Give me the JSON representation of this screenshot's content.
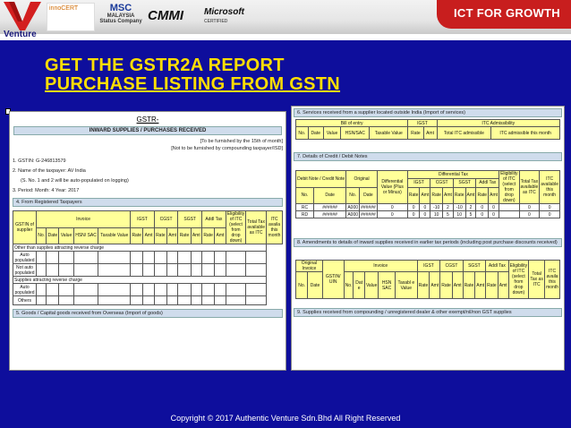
{
  "header": {
    "tagline": "ICT FOR GROWTH",
    "logo_text": "Venture",
    "inno_text": "innoCERT",
    "msc_text": "MSC",
    "msc_sub": "MALAYSIA Status Company",
    "cmmi_text": "CMMI",
    "ms_text": "Microsoft",
    "ms_sub": "CERTIFIED"
  },
  "titles": {
    "line1": "GET  THE GSTR2A REPORT",
    "line2": "PURCHASE LISTING FROM GSTN"
  },
  "left_doc": {
    "title": "GSTR-",
    "subtitle": "INWARD SUPPLIES / PURCHASES RECEIVED",
    "note1": "[To be furnished by the 15th of month]",
    "note2": "[Not to be furnished by compounding taxpayer/ISD]",
    "gstin": "1.    GSTIN: G-246813579",
    "name": "2.    Name of the taxpayer: AV India",
    "auto": "(S. No. 1 and 2 will be auto-populated on logging)",
    "period": "3.    Period:         Month: 4           Year: 2017",
    "sec4": "4. From Registered Taxpayers",
    "col_gstin": "GSTIN of supplier",
    "col_invoice": "Invoice",
    "inv_cols": [
      "No.",
      "Date",
      "Value",
      "HSN/ SAC",
      "Taxable Value"
    ],
    "tax_groups": [
      "IGST",
      "CGST",
      "SGST",
      "Addl Tax"
    ],
    "rate_amt": [
      "Rate",
      "Amt"
    ],
    "col_elig": "Eligibility of ITC (select from drop down)",
    "col_total": "Total Tax available as ITC",
    "col_itc": "ITC availa this month",
    "other_rc": "Other than supplies attracting reverse charge",
    "rc": "Supplies attracting reverse charge",
    "auto_pop": "Auto populated",
    "not_auto": "Not auto populated",
    "others": "Others",
    "sec5": "5. Goods / Capital goods received from Overseas (Import of goods)"
  },
  "right_doc": {
    "sec6": "6. Services received from a supplier located outside India (Import of services)",
    "bill": "Bill of entry",
    "igst": "IGST",
    "itc_adm": "ITC Admissibility",
    "s6_cols": [
      "No.",
      "Date",
      "Value",
      "HSN/SAC",
      "Taxable Value",
      "Rate",
      "Amt",
      "Total ITC admissible",
      "ITC admissible this month"
    ],
    "sec7": "7. Details of Credit / Debit Notes",
    "debit_note": "Debit Note / Credit Note",
    "original": "Original",
    "differential": "Differential Value (Plus or Minus)",
    "diff_tax": "Differential Tax",
    "s7_groups": [
      "IGST",
      "CGST",
      "SGST",
      "Addl Tax"
    ],
    "elig": "Eligibility of ITC (select from drop down)",
    "total_tax": "Total Tax available as ITC",
    "itc_month": "ITC available this month",
    "sub": [
      "No.",
      "Date",
      "No.",
      "Date",
      "Rate",
      "Amt",
      "Rate",
      "Amt",
      "Rate",
      "Amt",
      "Rate",
      "Amt"
    ],
    "rows": [
      [
        "RC",
        "######",
        "A000",
        "######",
        "0",
        "0",
        "0",
        "-10",
        "2",
        "-10",
        "2",
        "0",
        "0",
        "",
        "0",
        "0"
      ],
      [
        "RD",
        "######",
        "A000",
        "######",
        "0",
        "0",
        "0",
        "10",
        "5",
        "10",
        "5",
        "0",
        "0",
        "",
        "0",
        "0"
      ]
    ],
    "sec8": "8. Amendments to details of inward supplies received in earlier tax periods (including post purchase discounts received)",
    "s8_orig": "Original Invoice",
    "s8_gstin": "GSTIN/ UIN",
    "s8_invoice": "Invoice",
    "s8_sub": [
      "No.",
      "Date",
      "No.",
      "Dat e",
      "Value",
      "HSN SAC",
      "Taxabl e Value"
    ],
    "s8_tax": [
      "IGST",
      "CGST",
      "SGST",
      "Addl Tax"
    ],
    "s8_elig": "Eligibility of ITC (select from drop down)",
    "s8_total": "Total Tax as ITC",
    "s8_itc": "ITC availa this month",
    "sec9": "9. Supplies received from compounding / unregistered dealer & other exempt/nil/non GST supplies"
  },
  "footer": {
    "copyright": "Copyright © 2017 Authentic Venture Sdn.Bhd All Right Reserved"
  }
}
